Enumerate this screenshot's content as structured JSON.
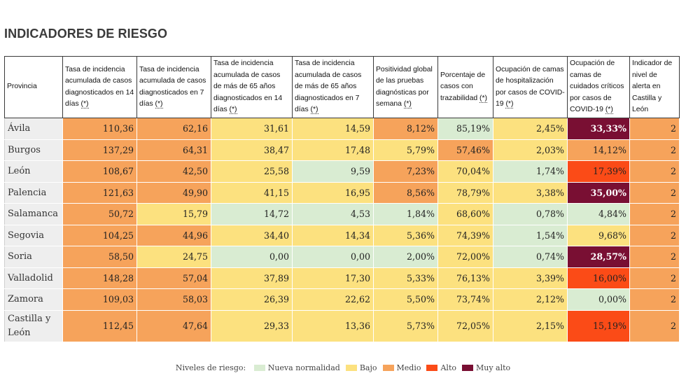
{
  "title": "INDICADORES DE RIESGO",
  "colors": {
    "nueva": "#d9ecd2",
    "bajo": "#fce17f",
    "medio": "#f6a35b",
    "alto": "#fb4b17",
    "muyalto": "#790f33"
  },
  "table": {
    "headers": [
      {
        "text": "Provincia",
        "note": ""
      },
      {
        "text": "Tasa de incidencia acumulada de casos diagnosticados en 14 días",
        "note": "(*)"
      },
      {
        "text": "Tasa de incidencia acumulada de casos diagnosticados en 7 días",
        "note": "(*)"
      },
      {
        "text": "Tasa de incidencia acumulada de casos de más de 65 años diagnosticados en 14 días",
        "note": "(*)"
      },
      {
        "text": "Tasa de incidencia acumulada de casos de más de 65 años diagnosticados en 7 días",
        "note": "(*)"
      },
      {
        "text": "Positividad global de las pruebas diagnósticas por semana",
        "note": "(*)"
      },
      {
        "text": "Porcentaje de casos con trazabilidad",
        "note": "(*)"
      },
      {
        "text": "Ocupación de camas de hospitalización por casos de COVID-19",
        "note": "(*)"
      },
      {
        "text": "Ocupación de camas de cuidados críticos por casos de COVID-19",
        "note": "(*)"
      },
      {
        "text": "Indicador de nivel de alerta en Castilla y León",
        "note": ""
      }
    ],
    "rows": [
      {
        "provincia": "Ávila",
        "cells": [
          {
            "v": "110,36",
            "l": "medio"
          },
          {
            "v": "62,16",
            "l": "medio"
          },
          {
            "v": "31,61",
            "l": "bajo"
          },
          {
            "v": "14,59",
            "l": "bajo"
          },
          {
            "v": "8,12%",
            "l": "medio"
          },
          {
            "v": "85,19%",
            "l": "nueva"
          },
          {
            "v": "2,45%",
            "l": "bajo"
          },
          {
            "v": "33,33%",
            "l": "muyalto"
          },
          {
            "v": "2",
            "l": "medio"
          }
        ]
      },
      {
        "provincia": "Burgos",
        "cells": [
          {
            "v": "137,29",
            "l": "medio"
          },
          {
            "v": "64,31",
            "l": "medio"
          },
          {
            "v": "38,47",
            "l": "bajo"
          },
          {
            "v": "17,48",
            "l": "bajo"
          },
          {
            "v": "5,79%",
            "l": "bajo"
          },
          {
            "v": "57,46%",
            "l": "medio"
          },
          {
            "v": "2,03%",
            "l": "bajo"
          },
          {
            "v": "14,12%",
            "l": "medio"
          },
          {
            "v": "2",
            "l": "medio"
          }
        ]
      },
      {
        "provincia": "León",
        "cells": [
          {
            "v": "108,67",
            "l": "medio"
          },
          {
            "v": "42,50",
            "l": "medio"
          },
          {
            "v": "25,58",
            "l": "bajo"
          },
          {
            "v": "9,59",
            "l": "nueva"
          },
          {
            "v": "7,23%",
            "l": "medio"
          },
          {
            "v": "70,04%",
            "l": "bajo"
          },
          {
            "v": "1,74%",
            "l": "nueva"
          },
          {
            "v": "17,39%",
            "l": "alto"
          },
          {
            "v": "2",
            "l": "medio"
          }
        ]
      },
      {
        "provincia": "Palencia",
        "cells": [
          {
            "v": "121,63",
            "l": "medio"
          },
          {
            "v": "49,90",
            "l": "medio"
          },
          {
            "v": "41,15",
            "l": "bajo"
          },
          {
            "v": "16,95",
            "l": "bajo"
          },
          {
            "v": "8,56%",
            "l": "medio"
          },
          {
            "v": "78,79%",
            "l": "bajo"
          },
          {
            "v": "3,38%",
            "l": "bajo"
          },
          {
            "v": "35,00%",
            "l": "muyalto"
          },
          {
            "v": "2",
            "l": "medio"
          }
        ]
      },
      {
        "provincia": "Salamanca",
        "cells": [
          {
            "v": "50,72",
            "l": "medio"
          },
          {
            "v": "15,79",
            "l": "bajo"
          },
          {
            "v": "14,72",
            "l": "nueva"
          },
          {
            "v": "4,53",
            "l": "nueva"
          },
          {
            "v": "1,84%",
            "l": "nueva"
          },
          {
            "v": "68,60%",
            "l": "bajo"
          },
          {
            "v": "0,78%",
            "l": "nueva"
          },
          {
            "v": "4,84%",
            "l": "nueva"
          },
          {
            "v": "2",
            "l": "medio"
          }
        ]
      },
      {
        "provincia": "Segovia",
        "cells": [
          {
            "v": "104,25",
            "l": "medio"
          },
          {
            "v": "44,96",
            "l": "medio"
          },
          {
            "v": "34,40",
            "l": "bajo"
          },
          {
            "v": "14,34",
            "l": "bajo"
          },
          {
            "v": "5,36%",
            "l": "bajo"
          },
          {
            "v": "74,39%",
            "l": "bajo"
          },
          {
            "v": "1,54%",
            "l": "nueva"
          },
          {
            "v": "9,68%",
            "l": "bajo"
          },
          {
            "v": "2",
            "l": "medio"
          }
        ]
      },
      {
        "provincia": "Soria",
        "cells": [
          {
            "v": "58,50",
            "l": "medio"
          },
          {
            "v": "24,75",
            "l": "bajo"
          },
          {
            "v": "0,00",
            "l": "nueva"
          },
          {
            "v": "0,00",
            "l": "nueva"
          },
          {
            "v": "2,00%",
            "l": "nueva"
          },
          {
            "v": "72,00%",
            "l": "bajo"
          },
          {
            "v": "0,74%",
            "l": "nueva"
          },
          {
            "v": "28,57%",
            "l": "muyalto"
          },
          {
            "v": "2",
            "l": "medio"
          }
        ]
      },
      {
        "provincia": "Valladolid",
        "cells": [
          {
            "v": "148,28",
            "l": "medio"
          },
          {
            "v": "57,04",
            "l": "medio"
          },
          {
            "v": "37,89",
            "l": "bajo"
          },
          {
            "v": "17,30",
            "l": "bajo"
          },
          {
            "v": "5,33%",
            "l": "bajo"
          },
          {
            "v": "76,13%",
            "l": "bajo"
          },
          {
            "v": "3,39%",
            "l": "bajo"
          },
          {
            "v": "16,00%",
            "l": "alto"
          },
          {
            "v": "2",
            "l": "medio"
          }
        ]
      },
      {
        "provincia": "Zamora",
        "cells": [
          {
            "v": "109,03",
            "l": "medio"
          },
          {
            "v": "58,03",
            "l": "medio"
          },
          {
            "v": "26,39",
            "l": "bajo"
          },
          {
            "v": "22,62",
            "l": "bajo"
          },
          {
            "v": "5,50%",
            "l": "bajo"
          },
          {
            "v": "73,74%",
            "l": "bajo"
          },
          {
            "v": "2,12%",
            "l": "bajo"
          },
          {
            "v": "0,00%",
            "l": "nueva"
          },
          {
            "v": "2",
            "l": "medio"
          }
        ]
      },
      {
        "provincia": "Castilla y León",
        "cells": [
          {
            "v": "112,45",
            "l": "medio"
          },
          {
            "v": "47,64",
            "l": "medio"
          },
          {
            "v": "29,33",
            "l": "bajo"
          },
          {
            "v": "13,36",
            "l": "bajo"
          },
          {
            "v": "5,73%",
            "l": "bajo"
          },
          {
            "v": "72,05%",
            "l": "bajo"
          },
          {
            "v": "2,15%",
            "l": "bajo"
          },
          {
            "v": "15,19%",
            "l": "alto"
          },
          {
            "v": "2",
            "l": "medio"
          }
        ]
      }
    ]
  },
  "legend": {
    "label": "Niveles de riesgo:",
    "items": [
      {
        "key": "nueva",
        "label": "Nueva normalidad"
      },
      {
        "key": "bajo",
        "label": "Bajo"
      },
      {
        "key": "medio",
        "label": "Medio"
      },
      {
        "key": "alto",
        "label": "Alto"
      },
      {
        "key": "muyalto",
        "label": "Muy alto"
      }
    ]
  }
}
